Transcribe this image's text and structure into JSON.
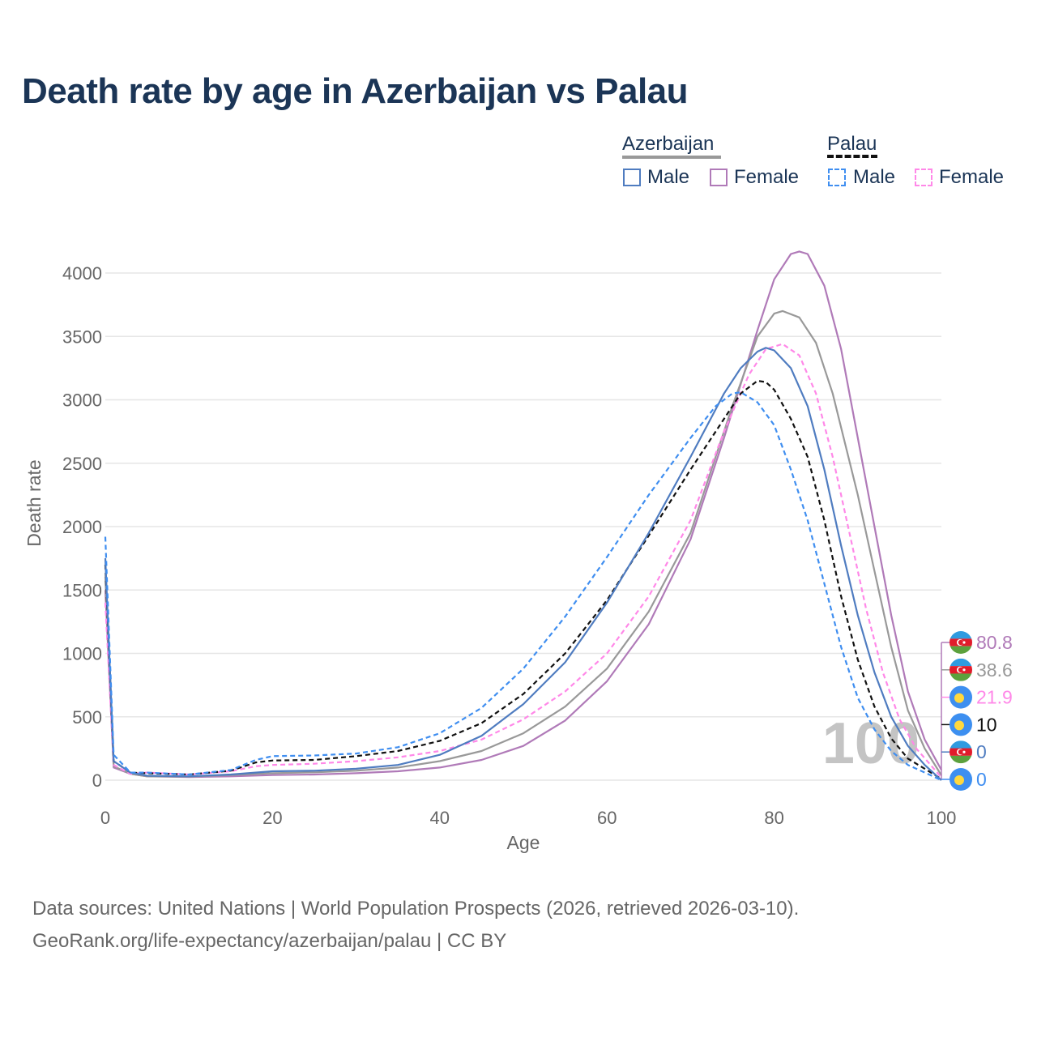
{
  "title": "Death rate by age in Azerbaijan vs Palau",
  "source_line1": "Data sources: United Nations | World Population Prospects (2026, retrieved 2026-03-10).",
  "source_line2": "GeoRank.org/life-expectancy/azerbaijan/palau | CC BY",
  "legend": {
    "groups": [
      {
        "name": "Azerbaijan",
        "line_style": "solid",
        "line_color": "#999999",
        "items": [
          {
            "label": "Male",
            "color": "#4f7cc0",
            "style": "solid"
          },
          {
            "label": "Female",
            "color": "#b07ab8",
            "style": "solid"
          }
        ]
      },
      {
        "name": "Palau",
        "line_style": "dashed",
        "line_color": "#111111",
        "items": [
          {
            "label": "Male",
            "color": "#3f8ef0",
            "style": "dashed"
          },
          {
            "label": "Female",
            "color": "#ff88e8",
            "style": "dashed"
          }
        ]
      }
    ]
  },
  "chart_data": {
    "type": "line",
    "title": "Death rate by age in Azerbaijan vs Palau",
    "xlabel": "Age",
    "ylabel": "Death rate",
    "xlim": [
      0,
      100
    ],
    "ylim": [
      0,
      4000
    ],
    "x_ticks": [
      0,
      20,
      40,
      60,
      80,
      100
    ],
    "y_ticks": [
      0,
      500,
      1000,
      1500,
      2000,
      2500,
      3000,
      3500,
      4000
    ],
    "grid": true,
    "current_age_label": "100",
    "series": [
      {
        "name": "Azerbaijan Female",
        "color": "#b07ab8",
        "dash": false,
        "points": [
          [
            0,
            1500
          ],
          [
            1,
            100
          ],
          [
            3,
            50
          ],
          [
            5,
            30
          ],
          [
            10,
            25
          ],
          [
            15,
            30
          ],
          [
            20,
            40
          ],
          [
            25,
            45
          ],
          [
            30,
            55
          ],
          [
            35,
            70
          ],
          [
            40,
            100
          ],
          [
            45,
            160
          ],
          [
            50,
            270
          ],
          [
            55,
            470
          ],
          [
            60,
            780
          ],
          [
            65,
            1230
          ],
          [
            70,
            1900
          ],
          [
            74,
            2700
          ],
          [
            78,
            3550
          ],
          [
            80,
            3950
          ],
          [
            82,
            4150
          ],
          [
            83,
            4170
          ],
          [
            84,
            4150
          ],
          [
            86,
            3900
          ],
          [
            88,
            3400
          ],
          [
            90,
            2700
          ],
          [
            92,
            2000
          ],
          [
            94,
            1300
          ],
          [
            96,
            700
          ],
          [
            98,
            320
          ],
          [
            100,
            80.8
          ]
        ],
        "end_value": "80.8"
      },
      {
        "name": "Azerbaijan total",
        "color": "#999999",
        "dash": false,
        "points": [
          [
            0,
            1600
          ],
          [
            1,
            110
          ],
          [
            3,
            50
          ],
          [
            5,
            30
          ],
          [
            10,
            28
          ],
          [
            15,
            40
          ],
          [
            20,
            55
          ],
          [
            25,
            62
          ],
          [
            30,
            75
          ],
          [
            35,
            100
          ],
          [
            40,
            150
          ],
          [
            45,
            230
          ],
          [
            50,
            370
          ],
          [
            55,
            580
          ],
          [
            60,
            880
          ],
          [
            65,
            1330
          ],
          [
            70,
            1950
          ],
          [
            75,
            2950
          ],
          [
            78,
            3500
          ],
          [
            80,
            3680
          ],
          [
            81,
            3700
          ],
          [
            83,
            3650
          ],
          [
            85,
            3450
          ],
          [
            87,
            3050
          ],
          [
            90,
            2250
          ],
          [
            92,
            1650
          ],
          [
            94,
            1050
          ],
          [
            96,
            550
          ],
          [
            98,
            250
          ],
          [
            100,
            38.6
          ]
        ],
        "end_value": "38.6"
      },
      {
        "name": "Palau Female",
        "color": "#ff88e8",
        "dash": true,
        "points": [
          [
            0,
            1400
          ],
          [
            1,
            120
          ],
          [
            3,
            50
          ],
          [
            5,
            60
          ],
          [
            10,
            45
          ],
          [
            15,
            70
          ],
          [
            18,
            110
          ],
          [
            20,
            120
          ],
          [
            25,
            130
          ],
          [
            30,
            150
          ],
          [
            35,
            180
          ],
          [
            40,
            230
          ],
          [
            45,
            320
          ],
          [
            50,
            480
          ],
          [
            55,
            700
          ],
          [
            60,
            1000
          ],
          [
            65,
            1450
          ],
          [
            70,
            2050
          ],
          [
            74,
            2750
          ],
          [
            77,
            3200
          ],
          [
            79,
            3400
          ],
          [
            81,
            3440
          ],
          [
            83,
            3350
          ],
          [
            85,
            3050
          ],
          [
            87,
            2550
          ],
          [
            89,
            1950
          ],
          [
            91,
            1350
          ],
          [
            93,
            850
          ],
          [
            95,
            480
          ],
          [
            97,
            250
          ],
          [
            100,
            21.9
          ]
        ],
        "end_value": "21.9"
      },
      {
        "name": "Palau total",
        "color": "#111111",
        "dash": true,
        "points": [
          [
            0,
            1700
          ],
          [
            1,
            150
          ],
          [
            3,
            60
          ],
          [
            5,
            55
          ],
          [
            10,
            45
          ],
          [
            15,
            75
          ],
          [
            18,
            140
          ],
          [
            20,
            155
          ],
          [
            25,
            160
          ],
          [
            30,
            190
          ],
          [
            35,
            230
          ],
          [
            40,
            310
          ],
          [
            45,
            450
          ],
          [
            50,
            680
          ],
          [
            55,
            1000
          ],
          [
            60,
            1420
          ],
          [
            65,
            1930
          ],
          [
            70,
            2450
          ],
          [
            74,
            2850
          ],
          [
            76,
            3050
          ],
          [
            78,
            3150
          ],
          [
            79,
            3140
          ],
          [
            80,
            3080
          ],
          [
            82,
            2850
          ],
          [
            84,
            2550
          ],
          [
            86,
            2050
          ],
          [
            88,
            1450
          ],
          [
            90,
            950
          ],
          [
            92,
            580
          ],
          [
            94,
            330
          ],
          [
            96,
            170
          ],
          [
            100,
            10
          ]
        ],
        "end_value": "10"
      },
      {
        "name": "Azerbaijan Male",
        "color": "#4f7cc0",
        "dash": false,
        "points": [
          [
            0,
            1750
          ],
          [
            1,
            150
          ],
          [
            3,
            60
          ],
          [
            5,
            35
          ],
          [
            10,
            30
          ],
          [
            15,
            45
          ],
          [
            20,
            70
          ],
          [
            25,
            75
          ],
          [
            30,
            90
          ],
          [
            35,
            120
          ],
          [
            40,
            200
          ],
          [
            45,
            350
          ],
          [
            50,
            600
          ],
          [
            55,
            930
          ],
          [
            60,
            1400
          ],
          [
            65,
            1950
          ],
          [
            70,
            2550
          ],
          [
            74,
            3050
          ],
          [
            76,
            3250
          ],
          [
            78,
            3380
          ],
          [
            79,
            3410
          ],
          [
            80,
            3390
          ],
          [
            82,
            3250
          ],
          [
            84,
            2950
          ],
          [
            86,
            2450
          ],
          [
            88,
            1850
          ],
          [
            90,
            1300
          ],
          [
            92,
            850
          ],
          [
            94,
            500
          ],
          [
            96,
            270
          ],
          [
            98,
            120
          ],
          [
            100,
            0
          ]
        ],
        "end_value": "0"
      },
      {
        "name": "Palau Male",
        "color": "#3f8ef0",
        "dash": true,
        "points": [
          [
            0,
            1920
          ],
          [
            1,
            200
          ],
          [
            3,
            60
          ],
          [
            5,
            60
          ],
          [
            10,
            45
          ],
          [
            15,
            80
          ],
          [
            18,
            160
          ],
          [
            20,
            190
          ],
          [
            25,
            195
          ],
          [
            30,
            210
          ],
          [
            35,
            260
          ],
          [
            40,
            370
          ],
          [
            45,
            570
          ],
          [
            50,
            880
          ],
          [
            55,
            1290
          ],
          [
            60,
            1760
          ],
          [
            65,
            2250
          ],
          [
            70,
            2700
          ],
          [
            73,
            2950
          ],
          [
            75,
            3050
          ],
          [
            76,
            3060
          ],
          [
            78,
            2980
          ],
          [
            80,
            2800
          ],
          [
            82,
            2450
          ],
          [
            84,
            2050
          ],
          [
            86,
            1550
          ],
          [
            88,
            1050
          ],
          [
            90,
            650
          ],
          [
            92,
            400
          ],
          [
            94,
            230
          ],
          [
            96,
            120
          ],
          [
            98,
            60
          ],
          [
            100,
            0
          ]
        ],
        "end_value": "0"
      }
    ],
    "end_markers": [
      {
        "flag": "Azerbaijan",
        "value_label": "80.8",
        "color": "#b07ab8"
      },
      {
        "flag": "Azerbaijan",
        "value_label": "38.6",
        "color": "#999999"
      },
      {
        "flag": "Palau",
        "value_label": "21.9",
        "color": "#ff88e8"
      },
      {
        "flag": "Palau",
        "value_label": "10",
        "color": "#111111"
      },
      {
        "flag": "Azerbaijan",
        "value_label": "0",
        "color": "#4f7cc0"
      },
      {
        "flag": "Palau",
        "value_label": "0",
        "color": "#3f8ef0"
      }
    ]
  }
}
